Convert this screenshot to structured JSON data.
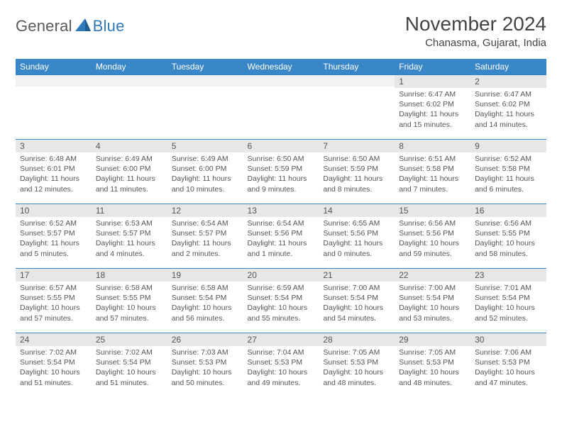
{
  "logo": {
    "part1": "General",
    "part2": "Blue"
  },
  "header": {
    "month_title": "November 2024",
    "location": "Chanasma, Gujarat, India"
  },
  "colors": {
    "header_bg": "#3a87c7",
    "header_text": "#ffffff",
    "daynum_bg": "#e7e7e7",
    "cell_border_top": "#3a87c7",
    "text": "#555555",
    "logo_gray": "#5a5a5a",
    "logo_blue": "#2f79b9"
  },
  "typography": {
    "month_title_fontsize": 28,
    "location_fontsize": 15,
    "dayheader_fontsize": 12,
    "daynum_fontsize": 12,
    "body_fontsize": 10.5
  },
  "day_headers": [
    "Sunday",
    "Monday",
    "Tuesday",
    "Wednesday",
    "Thursday",
    "Friday",
    "Saturday"
  ],
  "weeks": [
    [
      {
        "empty": true
      },
      {
        "empty": true
      },
      {
        "empty": true
      },
      {
        "empty": true
      },
      {
        "empty": true
      },
      {
        "n": "1",
        "sr": "6:47 AM",
        "ss": "6:02 PM",
        "dl": "11 hours and 15 minutes."
      },
      {
        "n": "2",
        "sr": "6:47 AM",
        "ss": "6:02 PM",
        "dl": "11 hours and 14 minutes."
      }
    ],
    [
      {
        "n": "3",
        "sr": "6:48 AM",
        "ss": "6:01 PM",
        "dl": "11 hours and 12 minutes."
      },
      {
        "n": "4",
        "sr": "6:49 AM",
        "ss": "6:00 PM",
        "dl": "11 hours and 11 minutes."
      },
      {
        "n": "5",
        "sr": "6:49 AM",
        "ss": "6:00 PM",
        "dl": "11 hours and 10 minutes."
      },
      {
        "n": "6",
        "sr": "6:50 AM",
        "ss": "5:59 PM",
        "dl": "11 hours and 9 minutes."
      },
      {
        "n": "7",
        "sr": "6:50 AM",
        "ss": "5:59 PM",
        "dl": "11 hours and 8 minutes."
      },
      {
        "n": "8",
        "sr": "6:51 AM",
        "ss": "5:58 PM",
        "dl": "11 hours and 7 minutes."
      },
      {
        "n": "9",
        "sr": "6:52 AM",
        "ss": "5:58 PM",
        "dl": "11 hours and 6 minutes."
      }
    ],
    [
      {
        "n": "10",
        "sr": "6:52 AM",
        "ss": "5:57 PM",
        "dl": "11 hours and 5 minutes."
      },
      {
        "n": "11",
        "sr": "6:53 AM",
        "ss": "5:57 PM",
        "dl": "11 hours and 4 minutes."
      },
      {
        "n": "12",
        "sr": "6:54 AM",
        "ss": "5:57 PM",
        "dl": "11 hours and 2 minutes."
      },
      {
        "n": "13",
        "sr": "6:54 AM",
        "ss": "5:56 PM",
        "dl": "11 hours and 1 minute."
      },
      {
        "n": "14",
        "sr": "6:55 AM",
        "ss": "5:56 PM",
        "dl": "11 hours and 0 minutes."
      },
      {
        "n": "15",
        "sr": "6:56 AM",
        "ss": "5:56 PM",
        "dl": "10 hours and 59 minutes."
      },
      {
        "n": "16",
        "sr": "6:56 AM",
        "ss": "5:55 PM",
        "dl": "10 hours and 58 minutes."
      }
    ],
    [
      {
        "n": "17",
        "sr": "6:57 AM",
        "ss": "5:55 PM",
        "dl": "10 hours and 57 minutes."
      },
      {
        "n": "18",
        "sr": "6:58 AM",
        "ss": "5:55 PM",
        "dl": "10 hours and 57 minutes."
      },
      {
        "n": "19",
        "sr": "6:58 AM",
        "ss": "5:54 PM",
        "dl": "10 hours and 56 minutes."
      },
      {
        "n": "20",
        "sr": "6:59 AM",
        "ss": "5:54 PM",
        "dl": "10 hours and 55 minutes."
      },
      {
        "n": "21",
        "sr": "7:00 AM",
        "ss": "5:54 PM",
        "dl": "10 hours and 54 minutes."
      },
      {
        "n": "22",
        "sr": "7:00 AM",
        "ss": "5:54 PM",
        "dl": "10 hours and 53 minutes."
      },
      {
        "n": "23",
        "sr": "7:01 AM",
        "ss": "5:54 PM",
        "dl": "10 hours and 52 minutes."
      }
    ],
    [
      {
        "n": "24",
        "sr": "7:02 AM",
        "ss": "5:54 PM",
        "dl": "10 hours and 51 minutes."
      },
      {
        "n": "25",
        "sr": "7:02 AM",
        "ss": "5:54 PM",
        "dl": "10 hours and 51 minutes."
      },
      {
        "n": "26",
        "sr": "7:03 AM",
        "ss": "5:53 PM",
        "dl": "10 hours and 50 minutes."
      },
      {
        "n": "27",
        "sr": "7:04 AM",
        "ss": "5:53 PM",
        "dl": "10 hours and 49 minutes."
      },
      {
        "n": "28",
        "sr": "7:05 AM",
        "ss": "5:53 PM",
        "dl": "10 hours and 48 minutes."
      },
      {
        "n": "29",
        "sr": "7:05 AM",
        "ss": "5:53 PM",
        "dl": "10 hours and 48 minutes."
      },
      {
        "n": "30",
        "sr": "7:06 AM",
        "ss": "5:53 PM",
        "dl": "10 hours and 47 minutes."
      }
    ]
  ],
  "labels": {
    "sunrise": "Sunrise:",
    "sunset": "Sunset:",
    "daylight": "Daylight:"
  }
}
